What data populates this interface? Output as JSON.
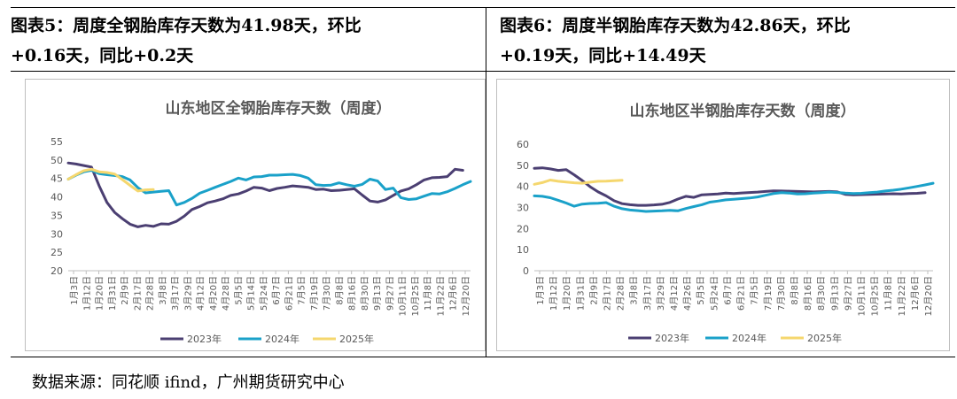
{
  "panels": [
    {
      "title_line1": "图表5：周度全钢胎库存天数为41.98天，环比",
      "title_line2": "+0.16天，同比+0.2天"
    },
    {
      "title_line1": "图表6：周度半钢胎库存天数为42.86天，环比",
      "title_line2": "+0.19天，同比+14.49天"
    }
  ],
  "source": "数据来源：同花顺 ifind，广州期货研究中心",
  "colors": {
    "s2023": "#4b3f72",
    "s2024": "#1aa1c9",
    "s2025": "#f5d76e"
  },
  "chart_data": [
    {
      "type": "line",
      "title": "山东地区全钢胎库存天数（周度）",
      "xlabel": "",
      "ylabel": "",
      "ylim": [
        20,
        55
      ],
      "yticks": [
        "55",
        "50",
        "45",
        "40",
        "35",
        "30",
        "25",
        "20"
      ],
      "xticks": [
        "1月3日",
        "1月12日",
        "1月20日",
        "1月31日",
        "2月9日",
        "2月17日",
        "2月28日",
        "3月8日",
        "3月17日",
        "3月29日",
        "4月12日",
        "4月20日",
        "4月28日",
        "5月5日",
        "5月14日",
        "5月24日",
        "6月7日",
        "6月21日",
        "7月5日",
        "7月19日",
        "7月30日",
        "8月8日",
        "8月16日",
        "8月30日",
        "9月13日",
        "9月27日",
        "10月11日",
        "10月25日",
        "11月8日",
        "11月22日",
        "12月6日",
        "12月20日"
      ],
      "series": [
        {
          "name": "2023年",
          "values": [
            49.2,
            48.9,
            48.5,
            48.1,
            43.0,
            38.5,
            35.8,
            34.1,
            32.6,
            31.9,
            32.3,
            32.0,
            32.7,
            32.6,
            33.4,
            34.8,
            36.6,
            37.4,
            38.4,
            38.9,
            39.5,
            40.4,
            40.8,
            41.6,
            42.6,
            42.4,
            41.7,
            42.3,
            42.6,
            43.0,
            42.8,
            42.6,
            42.0,
            42.1,
            41.7,
            41.8,
            42.0,
            42.2,
            40.5,
            38.9,
            38.6,
            39.2,
            40.4,
            41.6,
            42.2,
            43.3,
            44.6,
            45.2,
            45.3,
            45.5,
            47.5,
            47.2
          ]
        },
        {
          "name": "2024年",
          "values": [
            44.8,
            45.9,
            46.8,
            47.2,
            46.3,
            46.0,
            45.8,
            45.5,
            44.6,
            42.5,
            41.1,
            41.3,
            41.5,
            41.7,
            37.8,
            38.5,
            39.6,
            41.0,
            41.8,
            42.6,
            43.4,
            44.2,
            45.1,
            44.6,
            45.4,
            45.5,
            45.9,
            45.9,
            46.0,
            46.1,
            45.8,
            45.1,
            43.3,
            43.1,
            43.2,
            43.8,
            43.3,
            42.9,
            43.4,
            44.8,
            44.3,
            42.0,
            42.4,
            39.8,
            39.3,
            39.5,
            40.2,
            40.9,
            40.8,
            41.4,
            42.3,
            43.3,
            44.2
          ]
        },
        {
          "name": "2025年",
          "values": [
            44.8,
            46.0,
            47.1,
            47.5,
            46.8,
            46.6,
            46.2,
            44.7,
            43.1,
            41.6,
            41.9,
            42.0
          ]
        }
      ],
      "legend": [
        "2023年",
        "2024年",
        "2025年"
      ]
    },
    {
      "type": "line",
      "title": "山东地区半钢胎库存天数（周度）",
      "xlabel": "",
      "ylabel": "",
      "ylim": [
        0,
        60
      ],
      "yticks": [
        "60",
        "50",
        "40",
        "30",
        "20",
        "10",
        "0"
      ],
      "xticks": [
        "1月3日",
        "1月12日",
        "1月20日",
        "1月31日",
        "2月9日",
        "2月17日",
        "2月28日",
        "3月8日",
        "3月17日",
        "3月29日",
        "4月12日",
        "4月26日",
        "5月5日",
        "5月24日",
        "6月7日",
        "6月21日",
        "7月5日",
        "7月19日",
        "7月30日",
        "8月8日",
        "8月16日",
        "8月30日",
        "9月13日",
        "9月27日",
        "10月11日",
        "10月25日",
        "11月8日",
        "11月22日",
        "12月6日",
        "12月20日"
      ],
      "series": [
        {
          "name": "2023年",
          "values": [
            48.6,
            48.8,
            48.3,
            47.6,
            47.9,
            45.5,
            42.8,
            39.8,
            37.4,
            35.5,
            33.2,
            31.8,
            31.3,
            31.0,
            31.0,
            31.2,
            31.5,
            32.4,
            34.0,
            35.3,
            34.8,
            36.0,
            36.2,
            36.4,
            36.8,
            36.6,
            36.9,
            37.1,
            37.3,
            37.6,
            37.9,
            37.8,
            37.7,
            37.6,
            37.5,
            37.4,
            37.5,
            37.6,
            37.4,
            36.2,
            36.0,
            36.1,
            36.2,
            36.3,
            36.4,
            36.5,
            36.4,
            36.6,
            36.7,
            37.0
          ]
        },
        {
          "name": "2024年",
          "values": [
            35.5,
            35.3,
            34.6,
            33.4,
            32.1,
            30.6,
            31.6,
            31.9,
            32.0,
            32.3,
            30.6,
            29.4,
            28.8,
            28.5,
            28.1,
            28.3,
            28.4,
            28.6,
            28.4,
            29.5,
            30.4,
            31.3,
            32.5,
            33.0,
            33.6,
            33.9,
            34.2,
            34.5,
            35.0,
            35.8,
            36.6,
            37.0,
            36.8,
            36.4,
            36.5,
            36.8,
            37.0,
            37.3,
            37.1,
            36.8,
            36.6,
            36.7,
            37.0,
            37.3,
            37.8,
            38.2,
            38.7,
            39.3,
            40.0,
            40.7,
            41.5
          ]
        },
        {
          "name": "2025年",
          "values": [
            41.0,
            41.8,
            43.0,
            42.4,
            42.1,
            41.7,
            41.5,
            42.0,
            42.4,
            42.5,
            42.7,
            42.9
          ]
        }
      ],
      "legend": [
        "2023年",
        "2024年",
        "2025年"
      ]
    }
  ]
}
